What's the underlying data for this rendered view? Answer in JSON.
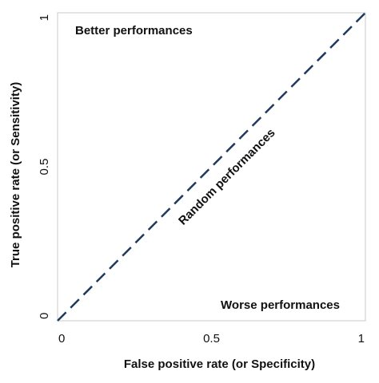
{
  "chart_data": {
    "type": "line",
    "title": "",
    "xlabel": "False positive rate (or Specificity)",
    "ylabel": "True positive rate (or Sensitivity)",
    "xlim": [
      0,
      1
    ],
    "ylim": [
      0,
      1
    ],
    "x_ticks": [
      {
        "value": 0,
        "label": "0"
      },
      {
        "value": 0.5,
        "label": "0.5"
      },
      {
        "value": 1,
        "label": "1"
      }
    ],
    "y_ticks": [
      {
        "value": 0,
        "label": "0"
      },
      {
        "value": 0.5,
        "label": "0.5"
      },
      {
        "value": 1,
        "label": "1"
      }
    ],
    "grid": false,
    "series": [
      {
        "x": [
          0,
          1
        ],
        "y": [
          0,
          1
        ],
        "style": "dashed",
        "color": "#1f3a5f"
      }
    ],
    "annotations": {
      "better": "Better performances",
      "random": "Random performances",
      "worse": "Worse performances"
    }
  }
}
